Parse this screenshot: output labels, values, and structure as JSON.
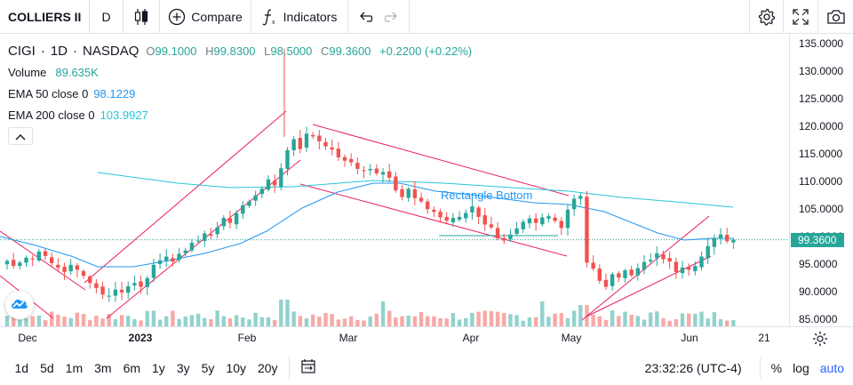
{
  "toolbar": {
    "symbol": "COLLIERS II",
    "interval": "D",
    "compare_label": "Compare",
    "indicators_label": "Indicators"
  },
  "legend": {
    "symbol": "CIGI",
    "interval": "1D",
    "exchange": "NASDAQ",
    "open_label": "O",
    "open": "99.1000",
    "high_label": "H",
    "high": "99.8300",
    "low_label": "L",
    "low": "98.5000",
    "close_label": "C",
    "close": "99.3600",
    "change": "+0.2200 (+0.22%)",
    "volume_label": "Volume",
    "volume": "89.635K",
    "ema50_label": "EMA 50 close 0",
    "ema50": "98.1229",
    "ema200_label": "EMA 200 close 0",
    "ema200": "103.9927"
  },
  "price_scale": {
    "ticks": [
      "135.0000",
      "130.0000",
      "125.0000",
      "120.0000",
      "115.0000",
      "110.0000",
      "105.0000",
      "100.0000",
      "95.0000",
      "90.0000",
      "85.0000"
    ],
    "current_price": "99.3600"
  },
  "time_scale": {
    "ticks": [
      "Dec",
      "2023",
      "Feb",
      "Mar",
      "Apr",
      "May",
      "Jun",
      "21"
    ]
  },
  "annotation": {
    "rectangle_label": "Rectangle Bottom"
  },
  "bottom_bar": {
    "ranges": [
      "1d",
      "5d",
      "1m",
      "3m",
      "6m",
      "1y",
      "3y",
      "5y",
      "10y",
      "20y"
    ],
    "clock": "23:32:26 (UTC-4)",
    "percent_label": "%",
    "log_label": "log",
    "auto_label": "auto"
  },
  "colors": {
    "up": "#26a69a",
    "down": "#ef5350",
    "ema50": "#2196f3",
    "ema200": "#26c6da",
    "channel": "#e91e63",
    "annotation": "#2196f3"
  },
  "chart_data": {
    "type": "candlestick",
    "symbol": "CIGI",
    "interval": "1D",
    "x": [
      "Dec",
      "2023",
      "Feb",
      "Mar",
      "Apr",
      "May",
      "Jun",
      "21"
    ],
    "closes": [
      95.5,
      94.6,
      95.2,
      96.1,
      95.8,
      97.2,
      96.4,
      95.1,
      94.3,
      93.5,
      94.8,
      93.9,
      92.8,
      91.5,
      90.6,
      89.4,
      89.2,
      90.3,
      89.8,
      90.9,
      91.5,
      90.8,
      92.4,
      94.8,
      95.6,
      96.3,
      95.4,
      96.8,
      97.4,
      98.8,
      99.2,
      100.5,
      100.1,
      101.6,
      103.3,
      102.4,
      104.2,
      105.6,
      106.3,
      107.4,
      108.6,
      110.3,
      109.2,
      112.3,
      115.6,
      117.6,
      115.8,
      118.6,
      118.1,
      117.2,
      116.3,
      115.7,
      114.3,
      113.7,
      113.4,
      112.2,
      111.8,
      112.2,
      111.4,
      111.6,
      110.6,
      108.3,
      107.1,
      108.6,
      106.9,
      106.3,
      104.9,
      104.4,
      103.4,
      102.8,
      103.3,
      103.5,
      104.2,
      105.4,
      103.5,
      102.1,
      101.6,
      99.6,
      99.2,
      100.3,
      101.4,
      102.6,
      103.2,
      102.4,
      103.4,
      103.6,
      102.8,
      101.5,
      104.8,
      106.8,
      107.3,
      95.2,
      94.1,
      91.9,
      90.8,
      93.1,
      92.5,
      93.8,
      92.9,
      94.2,
      95.3,
      95.7,
      96.9,
      95.8,
      95.4,
      93.5,
      94.3,
      93.9,
      94.6,
      96.3,
      98.2,
      99.7,
      100.3,
      99.1,
      99.36
    ],
    "ema50_last": 98.1229,
    "ema200_last": 103.9927,
    "open": 99.1,
    "high": 99.83,
    "low": 98.5,
    "close": 99.36,
    "change": 0.22,
    "change_pct": 0.22,
    "volume": "89.635K",
    "ylim": [
      83,
      136
    ],
    "y_ticks": [
      85,
      90,
      95,
      100,
      105,
      110,
      115,
      120,
      125,
      130,
      135
    ],
    "annotations": [
      "Rectangle Bottom"
    ]
  }
}
